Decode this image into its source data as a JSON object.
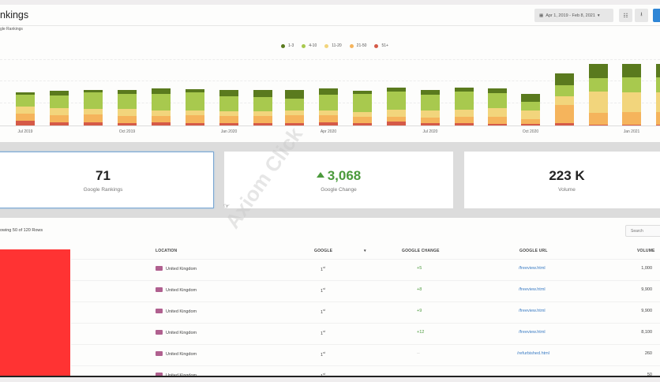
{
  "header": {
    "title": "nkings",
    "date_range": "Apr 1, 2019 - Feb 8, 2021",
    "icons": [
      "calendar-icon",
      "columns-icon",
      "download-icon"
    ]
  },
  "chart": {
    "subtitle": "gle Rankings",
    "legend": [
      {
        "label": "1-3",
        "color": "#5a7a1e"
      },
      {
        "label": "4-10",
        "color": "#a8c94e"
      },
      {
        "label": "11-20",
        "color": "#f2d57c"
      },
      {
        "label": "21-50",
        "color": "#f5b45c"
      },
      {
        "label": "51+",
        "color": "#d55a48"
      }
    ],
    "x_ticks": [
      {
        "label": "Jul 2019",
        "x": 32
      },
      {
        "label": "Oct 2019",
        "x": 161
      },
      {
        "label": "Jan 2020",
        "x": 290
      },
      {
        "label": "Apr 2020",
        "x": 416
      },
      {
        "label": "Jul 2020",
        "x": 545
      },
      {
        "label": "Oct 2020",
        "x": 672
      },
      {
        "label": "Jan 2021",
        "x": 800
      }
    ]
  },
  "chart_data": {
    "type": "bar",
    "stacked": true,
    "title": "Google Rankings",
    "xlabel": "",
    "ylabel": "",
    "grid": true,
    "legend_position": "top",
    "categories": [
      "Jul 2019",
      "Aug 2019",
      "Sep 2019",
      "Oct 2019",
      "Nov 2019",
      "Dec 2019",
      "Jan 2020",
      "Feb 2020",
      "Mar 2020",
      "Apr 2020",
      "May 2020",
      "Jun 2020",
      "Jul 2020",
      "Aug 2020",
      "Sep 2020",
      "Oct 2020",
      "Nov 2020",
      "Dec 2020",
      "Jan 2021",
      "Feb 2021"
    ],
    "series": [
      {
        "name": "1-3",
        "color": "#5a7a1e",
        "values": [
          3,
          6,
          3,
          5,
          7,
          4,
          8,
          9,
          11,
          8,
          4,
          5,
          6,
          5,
          6,
          10,
          15,
          18,
          17,
          17
        ]
      },
      {
        "name": "4-10",
        "color": "#a8c94e",
        "values": [
          15,
          16,
          21,
          19,
          21,
          23,
          19,
          18,
          15,
          20,
          23,
          23,
          20,
          23,
          19,
          11,
          14,
          17,
          19,
          19
        ]
      },
      {
        "name": "11-20",
        "color": "#f2d57c",
        "values": [
          9,
          9,
          7,
          9,
          7,
          6,
          6,
          6,
          6,
          6,
          6,
          9,
          9,
          9,
          11,
          11,
          11,
          27,
          25,
          25
        ]
      },
      {
        "name": "21-50",
        "color": "#f5b45c",
        "values": [
          9,
          9,
          10,
          9,
          8,
          10,
          9,
          9,
          10,
          9,
          8,
          6,
          7,
          8,
          9,
          6,
          23,
          15,
          16,
          16
        ]
      },
      {
        "name": "51+",
        "color": "#d55a48",
        "values": [
          6,
          4,
          4,
          3,
          4,
          3,
          3,
          3,
          3,
          4,
          3,
          5,
          3,
          3,
          2,
          2,
          3,
          1,
          1,
          1
        ]
      }
    ],
    "ylim": [
      0,
      85
    ]
  },
  "cards": [
    {
      "value": "71",
      "label": "Google Rankings",
      "selected": true
    },
    {
      "value": "3,068",
      "label": "Google Change",
      "trend": "up"
    },
    {
      "value": "223 K",
      "label": "Volume"
    }
  ],
  "table": {
    "rows_info": "owing 50 of 120 Rows",
    "search_placeholder": "Search",
    "columns": [
      "LOCATION",
      "GOOGLE",
      "GOOGLE CHANGE",
      "GOOGLE URL",
      "VOLUME"
    ],
    "sort_indicator": "▾",
    "rows": [
      {
        "location": "United Kingdom",
        "google": "1",
        "google_suffix": "st",
        "change": "+5",
        "url": "/freeview.html",
        "volume": "1,000"
      },
      {
        "location": "United Kingdom",
        "google": "1",
        "google_suffix": "st",
        "change": "+8",
        "url": "/freeview.html",
        "volume": "9,900"
      },
      {
        "location": "United Kingdom",
        "google": "1",
        "google_suffix": "st",
        "change": "+9",
        "url": "/freeview.html",
        "volume": "9,900"
      },
      {
        "location": "United Kingdom",
        "google": "1",
        "google_suffix": "st",
        "change": "+12",
        "url": "/freeview.html",
        "volume": "8,100"
      },
      {
        "location": "United Kingdom",
        "google": "1",
        "google_suffix": "st",
        "change": "--",
        "url": "/refurbished.html",
        "volume": "260"
      },
      {
        "location": "United Kingdom",
        "google": "1",
        "google_suffix": "st",
        "change": "",
        "url": "",
        "volume": "50"
      }
    ]
  },
  "watermark": "Axiom Click"
}
